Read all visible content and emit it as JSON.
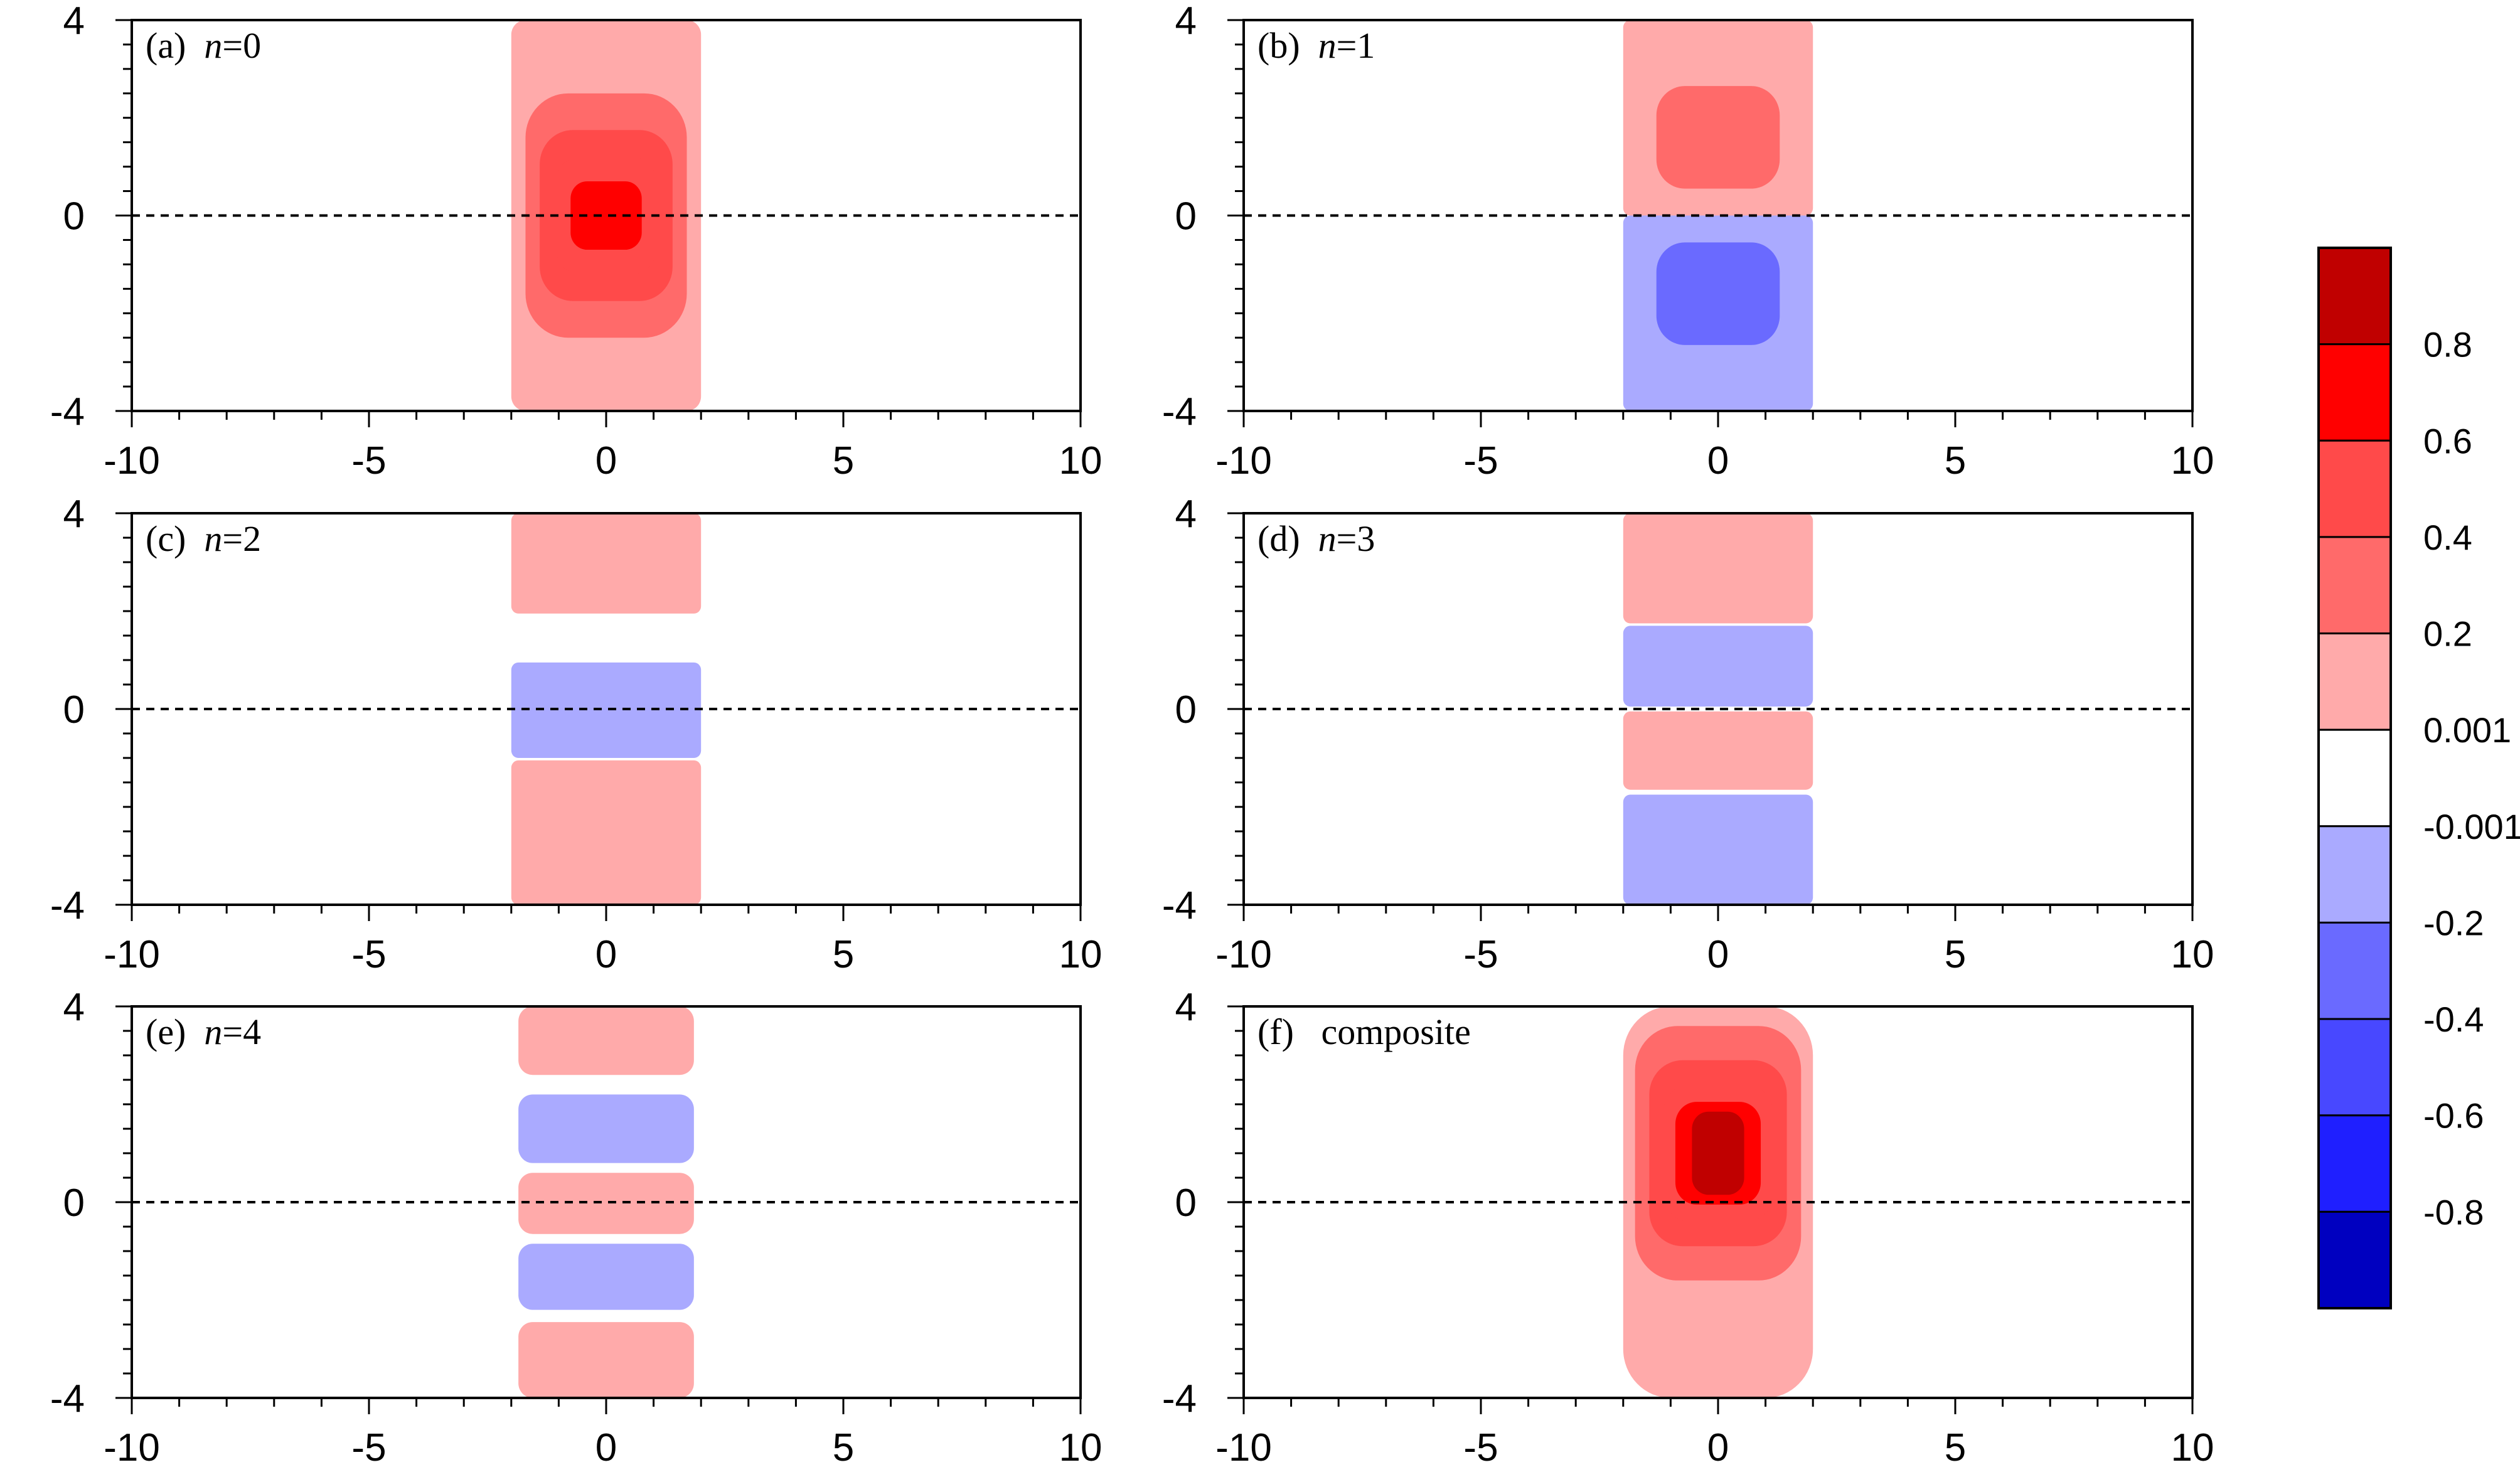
{
  "chart_data": {
    "type": "heatmap",
    "xlim": [
      -10,
      10
    ],
    "ylim": [
      -4,
      4
    ],
    "x_ticks": [
      -10,
      -5,
      0,
      5,
      10
    ],
    "y_ticks": [
      -4,
      0,
      4
    ],
    "x_tick_labels": [
      "-10",
      "-5",
      "0",
      "5",
      "10"
    ],
    "y_tick_labels": [
      "-4",
      "0",
      "4"
    ],
    "equator_line": {
      "y": 0,
      "style": "dashed"
    },
    "grid": false,
    "field_x_extent": [
      -2,
      2
    ],
    "panels": [
      {
        "label_prefix": "(a)",
        "label_var": "n",
        "label_value": "=0",
        "contours": [
          {
            "x_half": 2.0,
            "y0": -4,
            "y1": 4,
            "r": 0.3,
            "level": 1
          },
          {
            "x_half": 1.7,
            "y0": -2.5,
            "y1": 2.5,
            "r": 0.9,
            "level": 2
          },
          {
            "x_half": 1.4,
            "y0": -1.75,
            "y1": 1.75,
            "r": 0.7,
            "level": 3
          },
          {
            "x_half": 1.05,
            "y0": -1.2,
            "y1": 1.2,
            "r": 0.5,
            "level": 4
          },
          {
            "x_half": 0.75,
            "y0": -0.7,
            "y1": 0.7,
            "r": 0.35,
            "level": 5
          }
        ]
      },
      {
        "label_prefix": "(b)",
        "label_var": "n",
        "label_value": "=1",
        "contours": [
          {
            "x_half": 2.0,
            "y0": 0,
            "y1": 4,
            "r": 0.15,
            "level": 1
          },
          {
            "x_half": 2.0,
            "y0": -4,
            "y1": 0,
            "r": 0.15,
            "level": -1
          },
          {
            "x_half": 1.3,
            "y0": 0.55,
            "y1": 2.65,
            "r": 0.6,
            "level": 2
          },
          {
            "x_half": 1.3,
            "y0": -2.65,
            "y1": -0.55,
            "r": 0.6,
            "level": -2
          }
        ]
      },
      {
        "label_prefix": "(c)",
        "label_var": "n",
        "label_value": "=2",
        "contours": [
          {
            "x_half": 2.0,
            "y0": 1.95,
            "y1": 4,
            "r": 0.15,
            "level": 1
          },
          {
            "x_half": 2.0,
            "y0": -1.0,
            "y1": 0.95,
            "r": 0.15,
            "level": -1
          },
          {
            "x_half": 2.0,
            "y0": -4,
            "y1": -1.05,
            "r": 0.15,
            "level": 1
          }
        ]
      },
      {
        "label_prefix": "(d)",
        "label_var": "n",
        "label_value": "=3",
        "contours": [
          {
            "x_half": 2.0,
            "y0": 1.75,
            "y1": 4,
            "r": 0.15,
            "level": 1
          },
          {
            "x_half": 2.0,
            "y0": 0.05,
            "y1": 1.7,
            "r": 0.15,
            "level": -1
          },
          {
            "x_half": 2.0,
            "y0": -1.65,
            "y1": -0.05,
            "r": 0.15,
            "level": 1
          },
          {
            "x_half": 2.0,
            "y0": -4,
            "y1": -1.75,
            "r": 0.15,
            "level": -1
          }
        ]
      },
      {
        "label_prefix": "(e)",
        "label_var": "n",
        "label_value": "=4",
        "contours": [
          {
            "x_half": 1.85,
            "y0": 2.6,
            "y1": 4,
            "r": 0.3,
            "level": 1
          },
          {
            "x_half": 1.85,
            "y0": 0.8,
            "y1": 2.2,
            "r": 0.3,
            "level": -1
          },
          {
            "x_half": 1.85,
            "y0": -0.65,
            "y1": 0.6,
            "r": 0.3,
            "level": 1
          },
          {
            "x_half": 1.85,
            "y0": -2.2,
            "y1": -0.85,
            "r": 0.3,
            "level": -1
          },
          {
            "x_half": 1.85,
            "y0": -4,
            "y1": -2.45,
            "r": 0.3,
            "level": 1
          }
        ]
      },
      {
        "label_prefix": "(f)",
        "label_var": "",
        "label_value": "composite",
        "contours": [
          {
            "x_half": 2.0,
            "y0": -4,
            "y1": 4,
            "r": 1.0,
            "level": 1
          },
          {
            "x_half": 1.75,
            "y0": -1.6,
            "y1": 3.6,
            "r": 0.9,
            "level": 2
          },
          {
            "x_half": 1.45,
            "y0": -0.9,
            "y1": 2.9,
            "r": 0.7,
            "level": 3
          },
          {
            "x_half": 1.15,
            "y0": -0.4,
            "y1": 2.4,
            "r": 0.55,
            "level": 4
          },
          {
            "x_half": 0.9,
            "y0": -0.05,
            "y1": 2.05,
            "r": 0.45,
            "level": 5
          },
          {
            "x_half": 0.55,
            "y0": 0.15,
            "y1": 1.85,
            "r": 0.35,
            "level": 6
          }
        ]
      }
    ],
    "colorbar": {
      "levels": [
        "0.8",
        "0.6",
        "0.4",
        "0.2",
        "0.001",
        "-0.001",
        "-0.2",
        "-0.4",
        "-0.6",
        "-0.8"
      ],
      "colors": [
        "#c00000",
        "#ff0000",
        "#ff4a4a",
        "#ff6a6a",
        "#ffaaaa",
        "#ffffff",
        "#aaaaff",
        "#6a6aff",
        "#4848ff",
        "#1f1fff",
        "#0000c0"
      ]
    },
    "level_colors": {
      "6": "#c00000",
      "5": "#ff0000",
      "4": "#ff4a4a",
      "3": "#ff4a4a",
      "2": "#ff6a6a",
      "1": "#ffaaaa",
      "-1": "#aaaaff",
      "-2": "#6a6aff"
    }
  }
}
